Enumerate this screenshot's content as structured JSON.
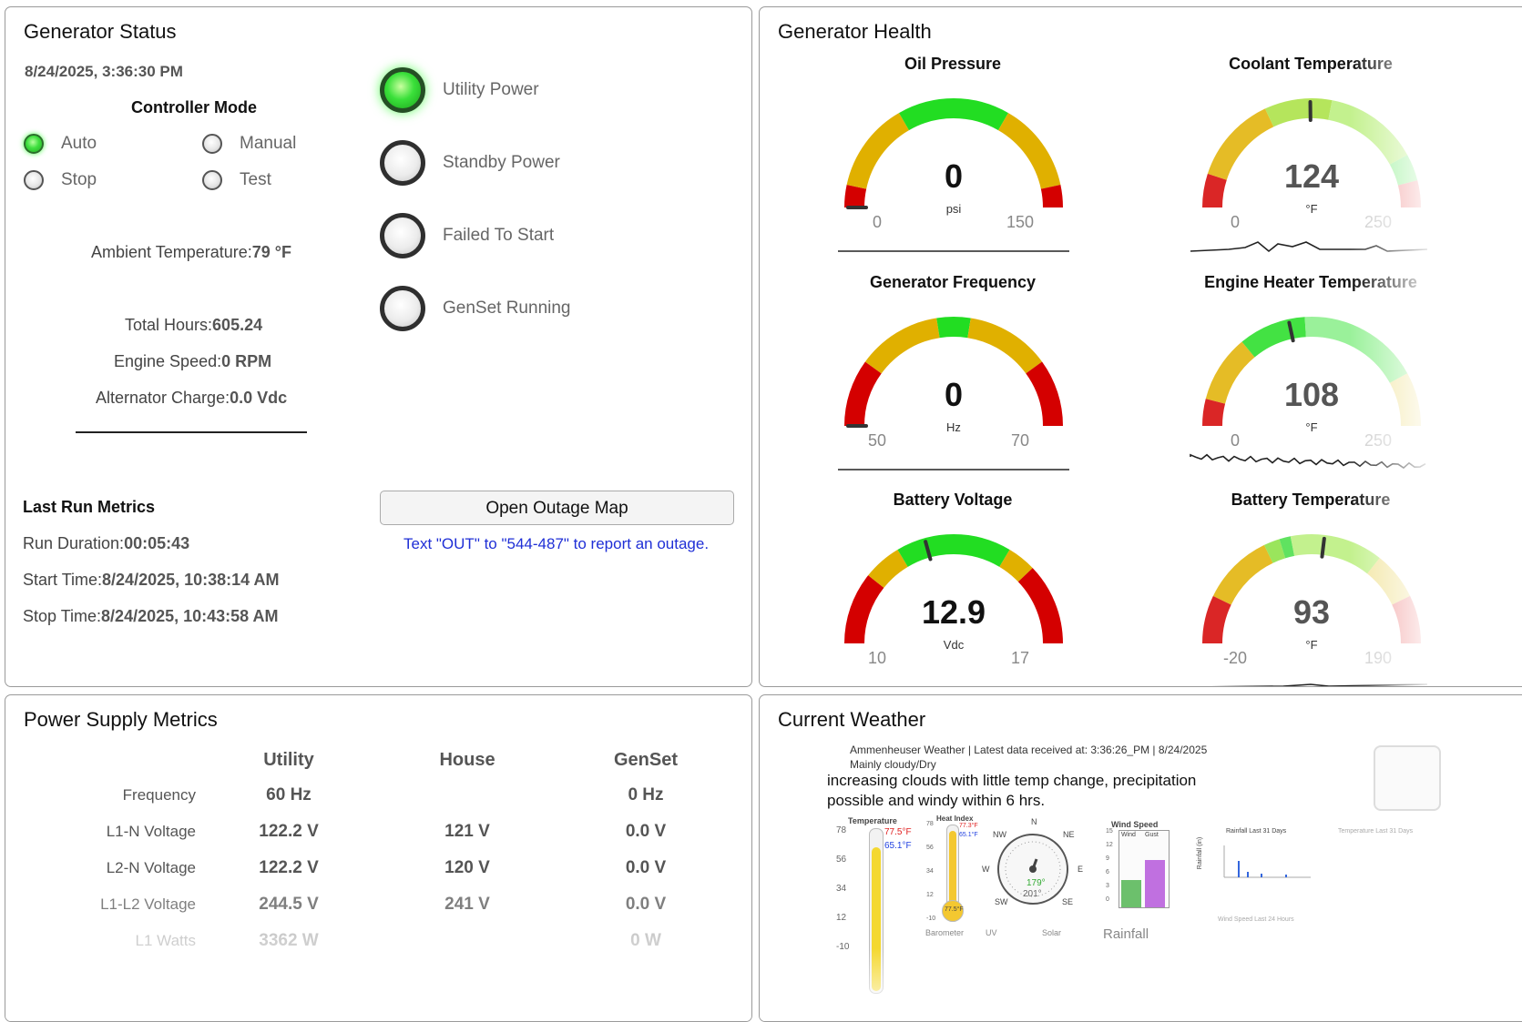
{
  "generator_status": {
    "title": "Generator Status",
    "datetime": "8/24/2025, 3:36:30 PM",
    "controller_mode_title": "Controller Mode",
    "modes": [
      {
        "label": "Auto",
        "active": true
      },
      {
        "label": "Manual",
        "active": false
      },
      {
        "label": "Stop",
        "active": false
      },
      {
        "label": "Test",
        "active": false
      }
    ],
    "indicators": [
      {
        "label": "Utility Power",
        "on": true
      },
      {
        "label": "Standby Power",
        "on": false
      },
      {
        "label": "Failed To Start",
        "on": false
      },
      {
        "label": "GenSet Running",
        "on": false
      }
    ],
    "ambient_label": "Ambient Temperature:",
    "ambient_value": "79 °F",
    "total_hours_label": "Total Hours:",
    "total_hours_value": "605.24",
    "engine_speed_label": "Engine Speed:",
    "engine_speed_value": "0 RPM",
    "alt_charge_label": "Alternator Charge:",
    "alt_charge_value": "0.0 Vdc",
    "last_run_title": "Last Run Metrics",
    "run_duration_label": "Run Duration:",
    "run_duration_value": "00:05:43",
    "start_time_label": "Start Time:",
    "start_time_value": "8/24/2025, 10:38:14 AM",
    "stop_time_label": "Stop Time:",
    "stop_time_value": "8/24/2025, 10:43:58 AM",
    "outage_button": "Open Outage Map",
    "outage_text": "Text \"OUT\" to \"544-487\" to report an outage."
  },
  "generator_health": {
    "title": "Generator Health",
    "gauges": [
      {
        "key": "oil",
        "title": "Oil Pressure",
        "value": "0",
        "numeric": 0,
        "unit": "psi",
        "min": "0",
        "max": "150",
        "min_n": 0,
        "max_n": 150,
        "value_color": "#111111",
        "bands": [
          {
            "from": 0,
            "to": 10,
            "color": "#d40000"
          },
          {
            "from": 10,
            "to": 50,
            "color": "#e0b000"
          },
          {
            "from": 50,
            "to": 100,
            "color": "#22dd22"
          },
          {
            "from": 100,
            "to": 140,
            "color": "#e0b000"
          },
          {
            "from": 140,
            "to": 150,
            "color": "#d40000"
          }
        ],
        "faded": false,
        "sparkline": "flat"
      },
      {
        "key": "coolant",
        "title": "Coolant Temperature",
        "value": "124",
        "numeric": 124,
        "unit": "°F",
        "min": "0",
        "max": "250",
        "min_n": 0,
        "max_n": 250,
        "value_color": "#555555",
        "bands": [
          {
            "from": 0,
            "to": 25,
            "color": "#d40000"
          },
          {
            "from": 25,
            "to": 90,
            "color": "#e0b000"
          },
          {
            "from": 90,
            "to": 140,
            "color": "#a8e040"
          },
          {
            "from": 140,
            "to": 210,
            "color": "#b8ee7a"
          },
          {
            "from": 210,
            "to": 230,
            "color": "#88ee88"
          },
          {
            "from": 230,
            "to": 250,
            "color": "#ee8888"
          }
        ],
        "faded": true,
        "sparkline": "bumps"
      },
      {
        "key": "freq",
        "title": "Generator Frequency",
        "value": "0",
        "numeric": 0,
        "unit": "Hz",
        "min": "50",
        "max": "70",
        "min_n": 50,
        "max_n": 70,
        "value_color": "#111111",
        "bands": [
          {
            "from": 50,
            "to": 54,
            "color": "#d40000"
          },
          {
            "from": 54,
            "to": 59,
            "color": "#e0b000"
          },
          {
            "from": 59,
            "to": 61,
            "color": "#22dd22"
          },
          {
            "from": 61,
            "to": 66,
            "color": "#e0b000"
          },
          {
            "from": 66,
            "to": 70,
            "color": "#d40000"
          }
        ],
        "faded": false,
        "sparkline": "flat"
      },
      {
        "key": "heater",
        "title": "Engine Heater Temperature",
        "value": "108",
        "numeric": 108,
        "unit": "°F",
        "min": "0",
        "max": "250",
        "min_n": 0,
        "max_n": 250,
        "value_color": "#555555",
        "bands": [
          {
            "from": 0,
            "to": 20,
            "color": "#d40000"
          },
          {
            "from": 20,
            "to": 70,
            "color": "#e0b000"
          },
          {
            "from": 70,
            "to": 120,
            "color": "#22dd22"
          },
          {
            "from": 120,
            "to": 210,
            "color": "#88ee88"
          },
          {
            "from": 210,
            "to": 250,
            "color": "#f0e090"
          }
        ],
        "faded": true,
        "sparkline": "noisy"
      },
      {
        "key": "battery",
        "title": "Battery Voltage",
        "value": "12.9",
        "numeric": 12.9,
        "unit": "Vdc",
        "min": "10",
        "max": "17",
        "min_n": 10,
        "max_n": 17,
        "value_color": "#111111",
        "bands": [
          {
            "from": 10,
            "to": 11.5,
            "color": "#d40000"
          },
          {
            "from": 11.5,
            "to": 12.3,
            "color": "#e0b000"
          },
          {
            "from": 12.3,
            "to": 14.7,
            "color": "#22dd22"
          },
          {
            "from": 14.7,
            "to": 15.3,
            "color": "#e0b000"
          },
          {
            "from": 15.3,
            "to": 17,
            "color": "#d40000"
          }
        ],
        "faded": false,
        "sparkline": "flat"
      },
      {
        "key": "battemp",
        "title": "Battery Temperature",
        "value": "93",
        "numeric": 93,
        "unit": "°F",
        "min": "-20",
        "max": "190",
        "min_n": -20,
        "max_n": 190,
        "value_color": "#555555",
        "bands": [
          {
            "from": -20,
            "to": 10,
            "color": "#d40000"
          },
          {
            "from": 10,
            "to": 55,
            "color": "#e0b000"
          },
          {
            "from": 55,
            "to": 65,
            "color": "#88e040"
          },
          {
            "from": 65,
            "to": 72,
            "color": "#44dd44"
          },
          {
            "from": 72,
            "to": 130,
            "color": "#b8ee7a"
          },
          {
            "from": 130,
            "to": 160,
            "color": "#f0e090"
          },
          {
            "from": 160,
            "to": 190,
            "color": "#ee8888"
          }
        ],
        "faded": true,
        "sparkline": "small"
      }
    ]
  },
  "power_supply": {
    "title": "Power Supply Metrics",
    "columns": [
      "Utility",
      "House",
      "GenSet"
    ],
    "rows": [
      {
        "label": "Frequency",
        "values": [
          "60 Hz",
          "",
          "0 Hz"
        ]
      },
      {
        "label": "L1-N Voltage",
        "values": [
          "122.2 V",
          "121 V",
          "0.0 V"
        ]
      },
      {
        "label": "L2-N Voltage",
        "values": [
          "122.2 V",
          "120 V",
          "0.0 V"
        ]
      },
      {
        "label": "L1-L2 Voltage",
        "values": [
          "244.5 V",
          "241 V",
          "0.0 V"
        ]
      },
      {
        "label": "L1 Watts",
        "values": [
          "3362 W",
          "",
          "0 W"
        ]
      }
    ]
  },
  "weather": {
    "title": "Current Weather",
    "header": "Ammenheuser Weather | Latest data received at: 3:36:26_PM | 8/24/2025",
    "conditions": "Mainly cloudy/Dry",
    "forecast": "increasing clouds with little temp change, precipitation possible and windy within 6 hrs.",
    "temp_widget": {
      "title": "Temperature",
      "hi": "77.5°F",
      "lo": "65.1°F",
      "ticks": [
        "78",
        "56",
        "34",
        "12",
        "-10"
      ]
    },
    "heat_widget": {
      "title": "Heat Index",
      "hi": "77.3°F",
      "lo": "65.1°F",
      "ticks": [
        "78",
        "56",
        "34",
        "12",
        "-10"
      ],
      "readout": "77.5°F",
      "bottom": "Barometer"
    },
    "compass": {
      "labels": [
        "N",
        "NE",
        "E",
        "SE",
        "SW",
        "W",
        "NW"
      ],
      "dir1": "179°",
      "dir2": "201°",
      "bottom": "UV"
    },
    "wind_widget": {
      "title": "Wind Speed",
      "cols": [
        "Wind",
        "Gust"
      ],
      "ticks": [
        "15",
        "12",
        "9",
        "6",
        "3",
        "0"
      ],
      "bottom": "Solar",
      "footer": "Rainfall"
    },
    "rain_chart_title": "Rainfall Last 31 Days",
    "rain_axis": "Rainfall (in)",
    "temp_chart_title": "Temperature Last 31 Days",
    "wind_chart_title": "Wind Speed Last 24 Hours"
  }
}
